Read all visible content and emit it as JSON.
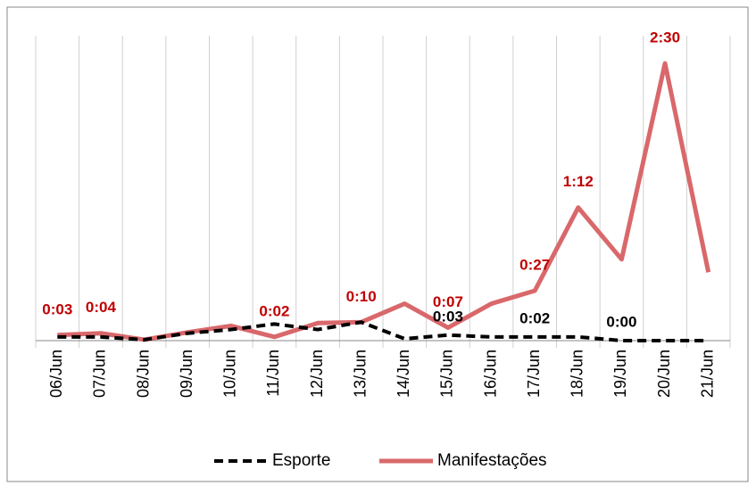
{
  "chart_data": {
    "type": "line",
    "categories": [
      "06/Jun",
      "07/Jun",
      "08/Jun",
      "09/Jun",
      "10/Jun",
      "11/Jun",
      "12/Jun",
      "13/Jun",
      "14/Jun",
      "15/Jun",
      "16/Jun",
      "17/Jun",
      "18/Jun",
      "19/Jun",
      "20/Jun",
      "21/Jun"
    ],
    "series": [
      {
        "name": "Esporte",
        "color": "#000000",
        "dashed": true,
        "values": [
          2,
          2,
          0.5,
          4,
          6,
          9,
          6,
          10,
          1,
          3,
          2,
          2,
          2,
          0,
          0,
          0
        ],
        "value_labels": [
          null,
          null,
          null,
          null,
          null,
          null,
          null,
          null,
          null,
          "0:03",
          null,
          "0:02",
          null,
          "0:00",
          null,
          null
        ]
      },
      {
        "name": "Manifestações",
        "color": "#d9686b",
        "dashed": false,
        "values": [
          3,
          4,
          0.5,
          4.5,
          8,
          2,
          9.5,
          10,
          20,
          7,
          20,
          27,
          72,
          44,
          150,
          37
        ],
        "value_labels": [
          "0:03",
          "0:04",
          null,
          null,
          null,
          "0:02",
          null,
          "0:10",
          null,
          "0:07",
          null,
          "0:27",
          "1:12",
          null,
          "2:30",
          null
        ]
      }
    ],
    "ylim": [
      0,
      165
    ],
    "grid": true,
    "legend": "bottom"
  }
}
